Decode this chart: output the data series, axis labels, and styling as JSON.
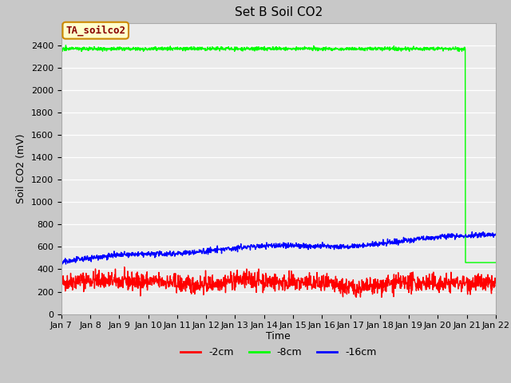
{
  "title": "Set B Soil CO2",
  "ylabel": "Soil CO2 (mV)",
  "xlabel": "Time",
  "ylim": [
    0,
    2600
  ],
  "yticks": [
    0,
    200,
    400,
    600,
    800,
    1000,
    1200,
    1400,
    1600,
    1800,
    2000,
    2200,
    2400
  ],
  "xtick_labels": [
    "Jan 7",
    "Jan 8",
    "Jan 9",
    "Jan 10",
    "Jan 11",
    "Jan 12",
    "Jan 13",
    "Jan 14",
    "Jan 15",
    "Jan 16",
    "Jan 17",
    "Jan 18",
    "Jan 19",
    "Jan 20",
    "Jan 21",
    "Jan 22"
  ],
  "plot_bg_color": "#ebebeb",
  "fig_bg_color": "#c8c8c8",
  "legend_label": "TA_soilco2",
  "legend_bg": "#ffffcc",
  "legend_border": "#cc8800",
  "legend_text_color": "#880000",
  "red_color": "#ff0000",
  "green_color": "#00ff00",
  "blue_color": "#0000ff",
  "line_width": 1.0,
  "title_fontsize": 11,
  "axis_fontsize": 9,
  "tick_fontsize": 8,
  "legend_fontsize": 9
}
